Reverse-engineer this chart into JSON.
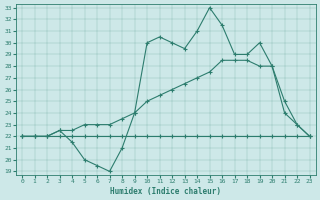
{
  "xlabel": "Humidex (Indice chaleur)",
  "bg_color": "#cde8e8",
  "line_color": "#2d7d6e",
  "x_min": 0,
  "x_max": 23,
  "y_min": 19,
  "y_max": 33,
  "x_ticks": [
    0,
    1,
    2,
    3,
    4,
    5,
    6,
    7,
    8,
    9,
    10,
    11,
    12,
    13,
    14,
    15,
    16,
    17,
    18,
    19,
    20,
    21,
    22,
    23
  ],
  "y_ticks": [
    19,
    20,
    21,
    22,
    23,
    24,
    25,
    26,
    27,
    28,
    29,
    30,
    31,
    32,
    33
  ],
  "s1_y": [
    22,
    22,
    22,
    22.5,
    21.5,
    20,
    19.5,
    19,
    21,
    24,
    30,
    30.5,
    30,
    29.5,
    31,
    33,
    31.5,
    29,
    29,
    30,
    28,
    24,
    23,
    22
  ],
  "s2_y": [
    22,
    22,
    22,
    22,
    22,
    22,
    22,
    22,
    22,
    22,
    22,
    22,
    22,
    22,
    22,
    22,
    22,
    22,
    22,
    22,
    22,
    22,
    22,
    22
  ],
  "s3_y": [
    22,
    22,
    22,
    22.5,
    22.5,
    23,
    23,
    23,
    23.5,
    24,
    25,
    25.5,
    26,
    26.5,
    27,
    27.5,
    28.5,
    28.5,
    28.5,
    28,
    28,
    25,
    23,
    22
  ]
}
